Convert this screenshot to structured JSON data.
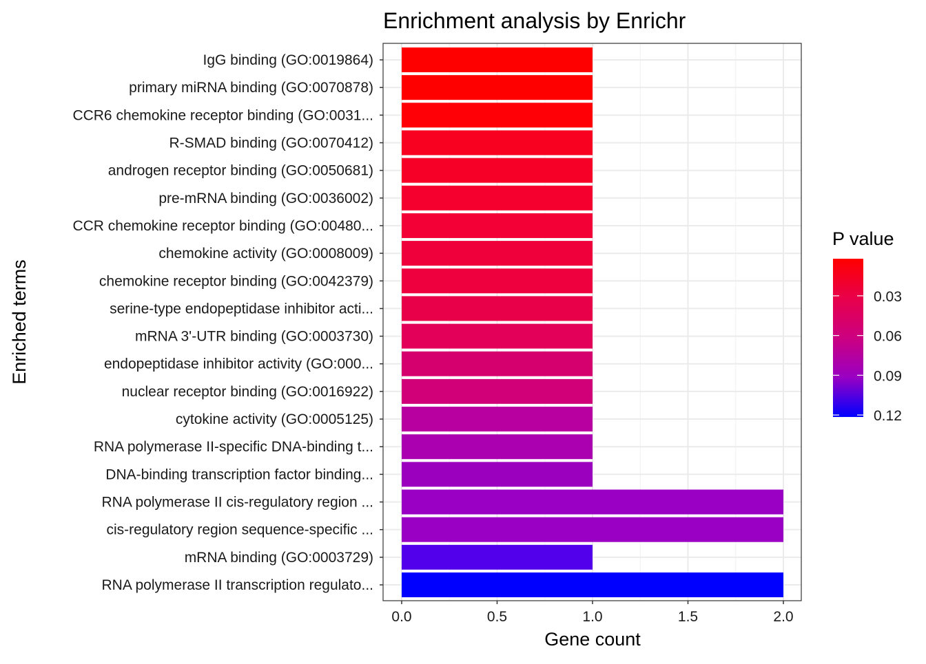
{
  "chart_data": {
    "type": "bar",
    "orientation": "horizontal",
    "title": "Enrichment analysis by Enrichr",
    "xlabel": "Gene count",
    "ylabel": "Enriched terms",
    "xlim": [
      0,
      2.1
    ],
    "x_ticks": [
      "0.0",
      "0.5",
      "1.0",
      "1.5",
      "2.0"
    ],
    "x_tick_values": [
      0,
      0.5,
      1,
      1.5,
      2
    ],
    "grid": true,
    "categories": [
      "IgG binding (GO:0019864)",
      "primary miRNA binding (GO:0070878)",
      "CCR6 chemokine receptor binding (GO:0031...",
      "R-SMAD binding (GO:0070412)",
      "androgen receptor binding (GO:0050681)",
      "pre-mRNA binding (GO:0036002)",
      "CCR chemokine receptor binding (GO:00480...",
      "chemokine activity (GO:0008009)",
      "chemokine receptor binding (GO:0042379)",
      "serine-type endopeptidase inhibitor acti...",
      "mRNA 3'-UTR binding (GO:0003730)",
      "endopeptidase inhibitor activity (GO:000...",
      "nuclear receptor binding (GO:0016922)",
      "cytokine activity (GO:0005125)",
      "RNA polymerase II-specific DNA-binding t...",
      "DNA-binding transcription factor binding...",
      "RNA polymerase II cis-regulatory region ...",
      "cis-regulatory region sequence-specific ...",
      "mRNA binding (GO:0003729)",
      "RNA polymerase II transcription regulato..."
    ],
    "values": [
      1,
      1,
      1,
      1,
      1,
      1,
      1,
      1,
      1,
      1,
      1,
      1,
      1,
      1,
      1,
      1,
      2,
      2,
      1,
      2
    ],
    "p_values": [
      0.002,
      0.003,
      0.004,
      0.009,
      0.011,
      0.013,
      0.015,
      0.016,
      0.017,
      0.02,
      0.026,
      0.034,
      0.037,
      0.053,
      0.062,
      0.072,
      0.074,
      0.075,
      0.104,
      0.121
    ],
    "fill_colors": [
      "#FF0000",
      "#FF0000",
      "#FF0006",
      "#F8001F",
      "#F70028",
      "#F5002E",
      "#F20036",
      "#F0003A",
      "#EE003E",
      "#E80048",
      "#E20058",
      "#D5006E",
      "#D20078",
      "#B800A0",
      "#AA00B0",
      "#9C00BF",
      "#9900C3",
      "#9900C3",
      "#5200EC",
      "#0000FF"
    ],
    "legend": {
      "title": "P value",
      "placement": "right",
      "ticks": [
        "0.03",
        "0.06",
        "0.09",
        "0.12"
      ],
      "tick_values": [
        0.03,
        0.06,
        0.09,
        0.12
      ],
      "range": [
        0.002,
        0.1215
      ],
      "low_color": "#FF0000",
      "high_color": "#0000FF"
    }
  }
}
